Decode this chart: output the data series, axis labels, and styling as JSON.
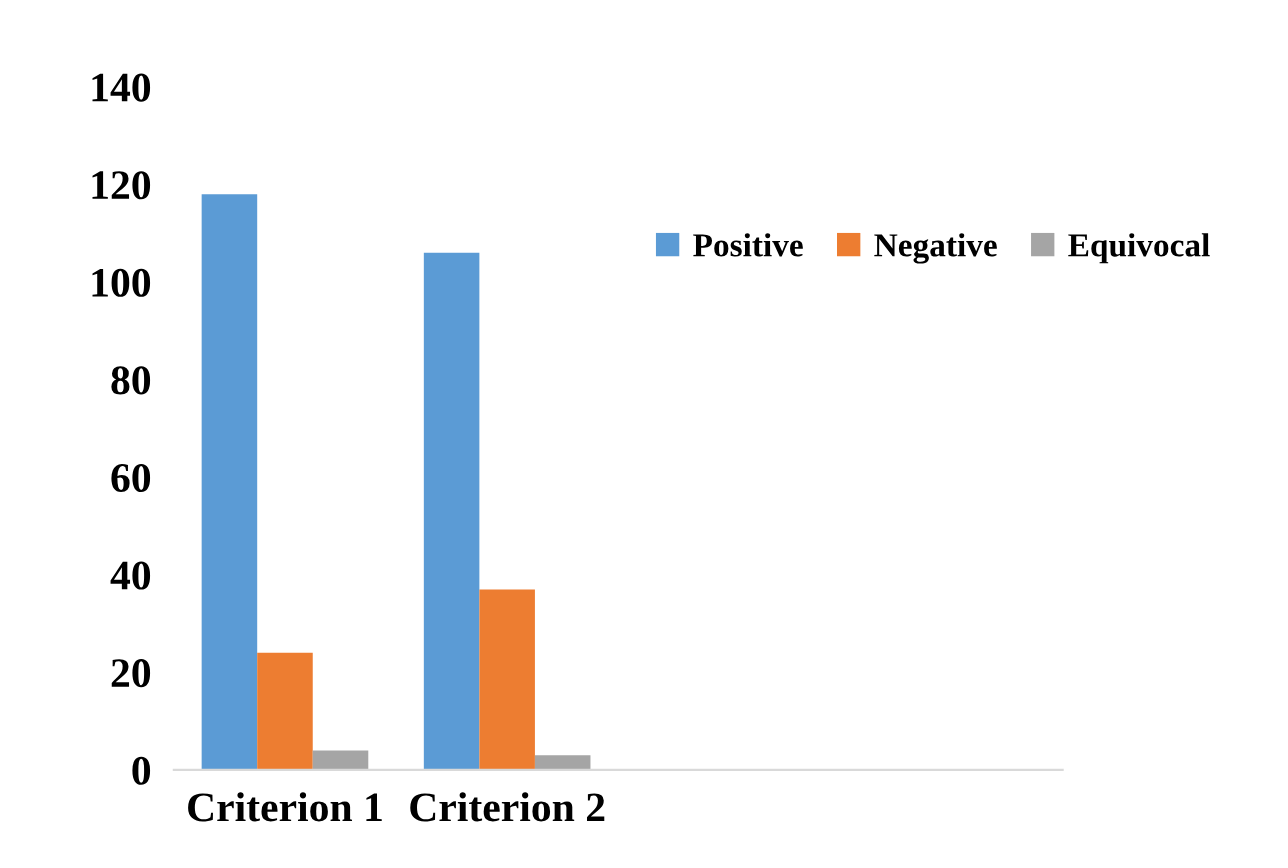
{
  "chart_data": {
    "type": "bar",
    "categories": [
      "Criterion 1",
      "Criterion 2",
      null,
      null
    ],
    "series": [
      {
        "name": "Positive",
        "color": "#5b9bd5",
        "values": [
          118,
          106,
          null,
          null
        ]
      },
      {
        "name": "Negative",
        "color": "#ed7d31",
        "values": [
          24,
          37,
          null,
          null
        ]
      },
      {
        "name": "Equivocal",
        "color": "#a5a5a5",
        "values": [
          4,
          3,
          null,
          null
        ]
      }
    ],
    "ylim": [
      0,
      140
    ],
    "yticks": [
      0,
      20,
      40,
      60,
      80,
      100,
      120,
      140
    ],
    "grid": false,
    "legend": "top right"
  }
}
